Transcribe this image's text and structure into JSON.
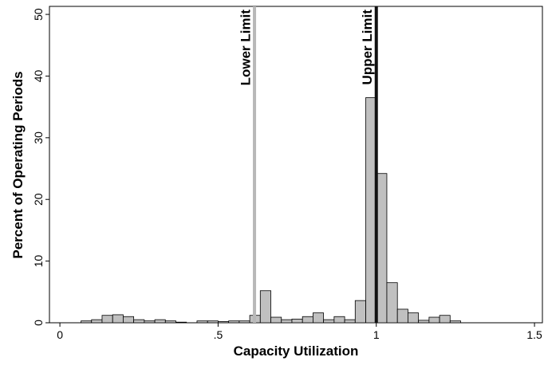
{
  "chart_data": {
    "type": "histogram",
    "xlabel": "Capacity Utilization",
    "ylabel": "Percent of Operating Periods",
    "bins": [
      0,
      0.0333,
      0.0667,
      0.1,
      0.1333,
      0.1667,
      0.2,
      0.2333,
      0.2667,
      0.3,
      0.3333,
      0.3667,
      0.4,
      0.4333,
      0.4667,
      0.5,
      0.5333,
      0.5667,
      0.6,
      0.6333,
      0.6667,
      0.7,
      0.7333,
      0.7667,
      0.8,
      0.8333,
      0.8667,
      0.9,
      0.9333,
      0.9667,
      1.0,
      1.0333,
      1.0667,
      1.1,
      1.1333,
      1.1667,
      1.2,
      1.2333,
      1.2667
    ],
    "values": [
      0,
      0,
      0.3,
      0.5,
      1.2,
      1.3,
      1.0,
      0.5,
      0.3,
      0.5,
      0.3,
      0.1,
      0,
      0.3,
      0.3,
      0.2,
      0.3,
      0.3,
      1.2,
      5.2,
      0.9,
      0.5,
      0.6,
      1.0,
      1.6,
      0.5,
      1.0,
      0.5,
      3.6,
      36.5,
      24.2,
      6.5,
      2.2,
      1.6,
      0.4,
      0.9,
      1.2,
      0.3
    ],
    "color": "#c0c0c0",
    "xlim": [
      -0.033,
      1.525
    ],
    "ylim": [
      0,
      51.3
    ],
    "xticks": [
      0,
      {
        "value": 0.5,
        "label": ".5"
      },
      1,
      1.5
    ],
    "yticks": [
      0,
      10,
      20,
      30,
      40,
      50
    ],
    "annotations": [
      {
        "x": 0.615,
        "label": "Lower Limit",
        "color": "#b8b8b8"
      },
      {
        "x": 1.0,
        "label": "Upper Limit",
        "color": "#111111"
      }
    ]
  }
}
